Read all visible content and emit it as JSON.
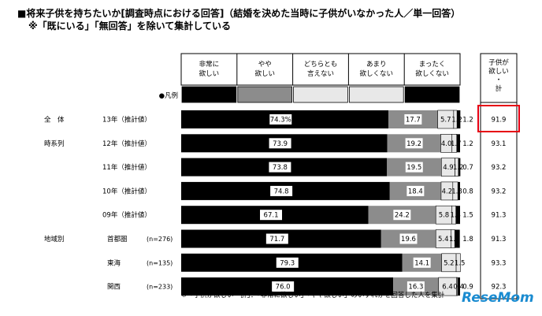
{
  "title_line1": "■将来子供を持ちたいか[調査時点における回答]（結婚を決めた当時に子供がいなかった人／単一回答）",
  "title_line2": "※「既にいる」「無回答」を除いて集計している",
  "footnote": "※「子供が欲しい・計」：「非常に欲しい」「やや欲しい」のいずれかを回答した人を集計",
  "watermark": "ReseMom",
  "legend_label": "●凡例",
  "chart_data": {
    "type": "bar",
    "stacked": true,
    "orientation": "horizontal",
    "categories": [
      "非常に欲しい",
      "やや欲しい",
      "どちらとも言えない",
      "あまり欲しくない",
      "まったく欲しくない"
    ],
    "category_lines": [
      [
        "非常に",
        "欲しい"
      ],
      [
        "やや",
        "欲しい"
      ],
      [
        "どちらとも",
        "言えない"
      ],
      [
        "あまり",
        "欲しくない"
      ],
      [
        "まったく",
        "欲しくない"
      ]
    ],
    "total_header_lines": [
      "子供が",
      "欲しい",
      "・",
      "計"
    ],
    "colors": [
      "#000000",
      "#8c8c8c",
      "#e8e8e8",
      "#e8e8e8",
      "#000000"
    ],
    "xlim": [
      0,
      100
    ],
    "rows": [
      {
        "group": "全　体",
        "label": "13年（推計値）",
        "n": "",
        "values": [
          74.3,
          17.7,
          5.7,
          1.2,
          1.2
        ],
        "value_labels": [
          "74.3%",
          "17.7",
          "5.7",
          "1.2",
          "1.2"
        ],
        "total": "91.9",
        "highlight": true
      },
      {
        "group": "時系列",
        "label": "12年（推計値）",
        "n": "",
        "values": [
          73.9,
          19.2,
          4.0,
          1.7,
          1.2
        ],
        "value_labels": [
          "73.9",
          "19.2",
          "4.0",
          "1.7",
          "1.2"
        ],
        "total": "93.1",
        "highlight": false
      },
      {
        "group": "",
        "label": "11年（推計値）",
        "n": "",
        "values": [
          73.8,
          19.5,
          4.9,
          1.2,
          0.7
        ],
        "value_labels": [
          "73.8",
          "19.5",
          "4.9",
          "1.2",
          "0.7"
        ],
        "total": "93.2",
        "highlight": false
      },
      {
        "group": "",
        "label": "10年（推計値）",
        "n": "",
        "values": [
          74.8,
          18.4,
          4.2,
          1.8,
          0.8
        ],
        "value_labels": [
          "74.8",
          "18.4",
          "4.2",
          "1.8",
          "0.8"
        ],
        "total": "93.2",
        "highlight": false
      },
      {
        "group": "",
        "label": "09年（推計値）",
        "n": "",
        "values": [
          67.1,
          24.2,
          5.8,
          1.4,
          1.5
        ],
        "value_labels": [
          "67.1",
          "24.2",
          "5.8",
          "1.4",
          "1.5"
        ],
        "total": "91.3",
        "highlight": false
      },
      {
        "group": "地域別",
        "label": "首都圏",
        "n": "(n=276)",
        "values": [
          71.7,
          19.6,
          5.4,
          1.4,
          1.8
        ],
        "value_labels": [
          "71.7",
          "19.6",
          "5.4",
          "1.4",
          "1.8"
        ],
        "total": "91.3",
        "highlight": false
      },
      {
        "group": "",
        "label": "東海",
        "n": "(n=135)",
        "values": [
          79.3,
          14.1,
          5.2,
          1.5,
          0.0
        ],
        "value_labels": [
          "79.3",
          "14.1",
          "5.2",
          "1.5",
          ""
        ],
        "total": "93.3",
        "highlight": false
      },
      {
        "group": "",
        "label": "関西",
        "n": "(n=233)",
        "values": [
          76.0,
          16.3,
          6.4,
          0.4,
          0.9
        ],
        "value_labels": [
          "76.0",
          "16.3",
          "6.4",
          "0.4",
          "0.9"
        ],
        "total": "92.3",
        "highlight": false
      }
    ]
  }
}
